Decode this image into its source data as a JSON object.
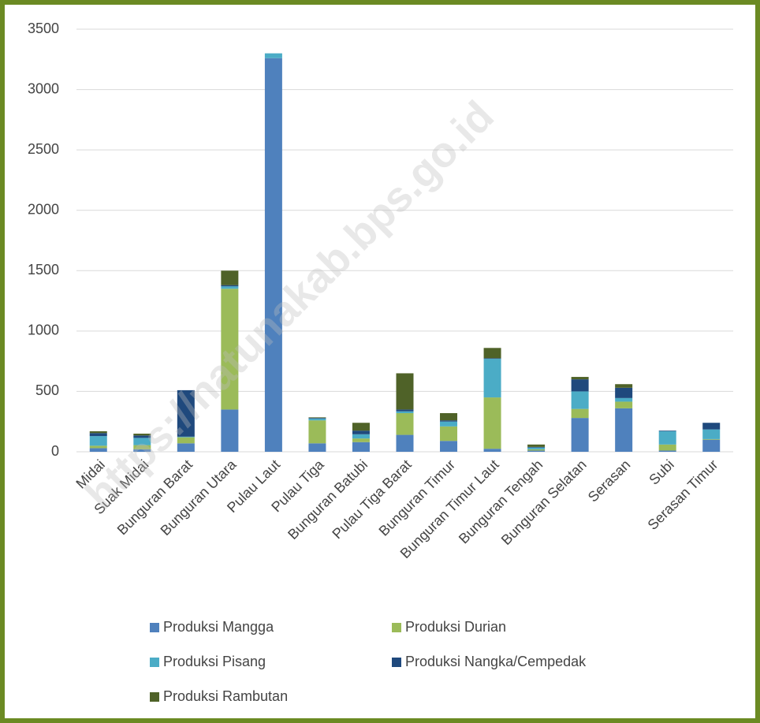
{
  "chart_data": {
    "type": "stacked_bar",
    "watermark": "https://natunakab.bps.go.id",
    "categories": [
      "Midai",
      "Suak Midai",
      "Bunguran Barat",
      "Bunguran Utara",
      "Pulau Laut",
      "Pulau Tiga",
      "Bunguran Batubi",
      "Pulau Tiga Barat",
      "Bunguran Timur",
      "Bunguran Timur Laut",
      "Bunguran Tengah",
      "Bunguran Selatan",
      "Serasan",
      "Subi",
      "Serasan Timur"
    ],
    "series": [
      {
        "name": "Produksi Mangga",
        "color": "#4f81bd",
        "values": [
          30,
          20,
          70,
          350,
          3260,
          70,
          80,
          140,
          90,
          25,
          10,
          280,
          360,
          10,
          100
        ]
      },
      {
        "name": "Produksi Durian",
        "color": "#9bbb59",
        "values": [
          20,
          35,
          50,
          1000,
          0,
          190,
          30,
          180,
          120,
          425,
          10,
          75,
          55,
          50,
          5
        ]
      },
      {
        "name": "Produksi Pisang",
        "color": "#4bacc6",
        "values": [
          80,
          60,
          5,
          20,
          40,
          15,
          35,
          15,
          40,
          320,
          15,
          145,
          30,
          110,
          80
        ]
      },
      {
        "name": "Produksi Nangka/Cempedak",
        "color": "#1f497d",
        "values": [
          25,
          20,
          385,
          10,
          0,
          5,
          30,
          15,
          10,
          5,
          5,
          100,
          85,
          5,
          55
        ]
      },
      {
        "name": "Produksi Rambutan",
        "color": "#4f6228",
        "values": [
          15,
          15,
          0,
          120,
          0,
          5,
          65,
          300,
          60,
          85,
          20,
          20,
          30,
          0,
          0
        ]
      }
    ],
    "ylim": [
      0,
      3500
    ],
    "yticks": [
      0,
      500,
      1000,
      1500,
      2000,
      2500,
      3000,
      3500
    ],
    "grid": true
  }
}
